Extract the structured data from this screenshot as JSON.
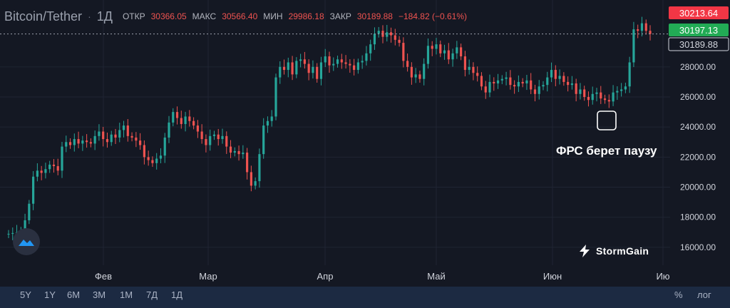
{
  "header": {
    "symbol": "Bitcoin/Tether",
    "timeframe": "1Д",
    "open_label": "ОТКР",
    "open_value": "30366.05",
    "high_label": "МАКС",
    "high_value": "30566.40",
    "low_label": "МИН",
    "low_value": "29986.18",
    "close_label": "ЗАКР",
    "close_value": "30189.88",
    "change": "−184.82 (−0.61%)"
  },
  "annotation": "ФРС берет паузу",
  "brand": "StormGain",
  "range_buttons": [
    "5Y",
    "1Y",
    "6M",
    "3M",
    "1M",
    "7Д",
    "1Д"
  ],
  "scale_buttons": [
    "%",
    "лог"
  ],
  "price_labels": [
    {
      "text": "30213.64",
      "value": 30213.64,
      "color": "#f23645"
    },
    {
      "text": "30197.13",
      "value": 30197.13,
      "color": "#22ab55"
    },
    {
      "text": "30189.88",
      "value": 30189.88,
      "color": "#d1d4dc"
    }
  ],
  "colors": {
    "up": "#26a69a",
    "down": "#ef5350",
    "background": "#141823",
    "grid": "#1f2433"
  },
  "chart_data": {
    "type": "candlestick",
    "title": "Bitcoin/Tether 1Д",
    "x_ticks": [
      "Фев",
      "Мар",
      "Апр",
      "Май",
      "Июн",
      "Ию"
    ],
    "y_ticks": [
      "16000.00",
      "18000.00",
      "20000.00",
      "22000.00",
      "24000.00",
      "26000.00",
      "28000.00"
    ],
    "ylim": [
      15000,
      31500
    ],
    "last_price": 30189.88,
    "closes": [
      16900,
      16950,
      17000,
      17050,
      17800,
      18900,
      20700,
      21100,
      20950,
      21200,
      21500,
      21400,
      21100,
      22700,
      23000,
      22800,
      23200,
      22900,
      23100,
      23000,
      22900,
      23400,
      23700,
      23200,
      23000,
      23500,
      23300,
      23800,
      24100,
      23400,
      23300,
      23100,
      22800,
      22000,
      21800,
      21600,
      21900,
      22100,
      23300,
      24300,
      25000,
      24600,
      24200,
      24700,
      24400,
      24100,
      23700,
      23200,
      22800,
      23400,
      23500,
      23200,
      23400,
      22700,
      22300,
      22400,
      22200,
      22300,
      21000,
      20100,
      20400,
      22200,
      24100,
      24400,
      24700,
      27300,
      28000,
      27800,
      28300,
      27500,
      28400,
      28500,
      28200,
      27600,
      28000,
      27200,
      28300,
      28700,
      28100,
      28200,
      28500,
      28300,
      28200,
      28100,
      27800,
      28300,
      28400,
      28900,
      29500,
      30200,
      30400,
      30000,
      30300,
      30100,
      29800,
      29600,
      28400,
      28000,
      27300,
      27500,
      27200,
      28200,
      29400,
      29200,
      29500,
      28900,
      29100,
      28500,
      28900,
      29300,
      28700,
      27800,
      28000,
      27600,
      27400,
      26700,
      26300,
      27000,
      26900,
      27100,
      27200,
      27300,
      26800,
      26700,
      27000,
      26900,
      27100,
      26500,
      26200,
      26700,
      26800,
      27300,
      27800,
      27200,
      27400,
      27000,
      26800,
      26900,
      26200,
      26500,
      26000,
      25800,
      26200,
      26300,
      25900,
      25800,
      25700,
      26300,
      26400,
      26500,
      26700,
      28300,
      30500,
      30400,
      30900,
      30400,
      30189.88
    ]
  }
}
